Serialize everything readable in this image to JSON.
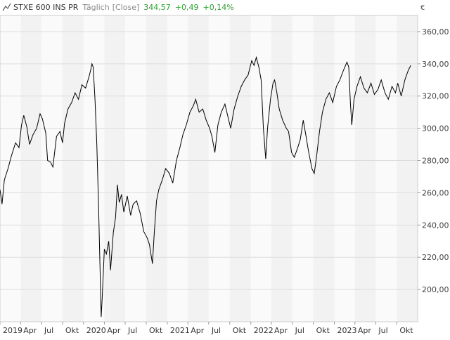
{
  "header": {
    "instrument": "STXE 600 INS PR",
    "interval": "Täglich",
    "price_type": "[Close]",
    "last": "344,57",
    "change": "+0,49",
    "change_pct": "+0,14%",
    "currency": "€"
  },
  "colors": {
    "positive": "#2e9e2e",
    "line": "#000000",
    "grid": "#dddddd",
    "band_alt": "#f2f2f2",
    "muted": "#888888"
  },
  "chart_data": {
    "type": "line",
    "ylim": [
      180,
      370
    ],
    "yticks": [
      200,
      220,
      240,
      260,
      280,
      300,
      320,
      340,
      360
    ],
    "ytick_labels": [
      "200,00",
      "220,00",
      "240,00",
      "260,00",
      "280,00",
      "300,00",
      "320,00",
      "340,00",
      "360,00"
    ],
    "xlim": [
      "2019-01-01",
      "2023-12-31"
    ],
    "xticks": [
      {
        "date": "2019-01-01",
        "label": "2019"
      },
      {
        "date": "2019-04-01",
        "label": "Apr"
      },
      {
        "date": "2019-07-01",
        "label": "Jul"
      },
      {
        "date": "2019-10-01",
        "label": "Okt"
      },
      {
        "date": "2020-01-01",
        "label": "2020"
      },
      {
        "date": "2020-04-01",
        "label": "Apr"
      },
      {
        "date": "2020-07-01",
        "label": "Jul"
      },
      {
        "date": "2020-10-01",
        "label": "Okt"
      },
      {
        "date": "2021-01-01",
        "label": "2021"
      },
      {
        "date": "2021-04-01",
        "label": "Apr"
      },
      {
        "date": "2021-07-01",
        "label": "Jul"
      },
      {
        "date": "2021-10-01",
        "label": "Okt"
      },
      {
        "date": "2022-01-01",
        "label": "2022"
      },
      {
        "date": "2022-04-01",
        "label": "Apr"
      },
      {
        "date": "2022-07-01",
        "label": "Jul"
      },
      {
        "date": "2022-10-01",
        "label": "Okt"
      },
      {
        "date": "2023-01-01",
        "label": "2023"
      },
      {
        "date": "2023-04-01",
        "label": "Apr"
      },
      {
        "date": "2023-07-01",
        "label": "Jul"
      },
      {
        "date": "2023-10-01",
        "label": "Okt"
      }
    ],
    "series": [
      {
        "values": [
          [
            "2019-01-01",
            262
          ],
          [
            "2019-01-10",
            253
          ],
          [
            "2019-01-20",
            268
          ],
          [
            "2019-02-05",
            275
          ],
          [
            "2019-02-20",
            283
          ],
          [
            "2019-03-10",
            291
          ],
          [
            "2019-03-25",
            288
          ],
          [
            "2019-04-05",
            302
          ],
          [
            "2019-04-15",
            308
          ],
          [
            "2019-04-28",
            301
          ],
          [
            "2019-05-10",
            290
          ],
          [
            "2019-05-25",
            296
          ],
          [
            "2019-06-10",
            300
          ],
          [
            "2019-06-25",
            309
          ],
          [
            "2019-07-05",
            306
          ],
          [
            "2019-07-20",
            297
          ],
          [
            "2019-07-28",
            280
          ],
          [
            "2019-08-10",
            279
          ],
          [
            "2019-08-20",
            276
          ],
          [
            "2019-09-05",
            295
          ],
          [
            "2019-09-20",
            298
          ],
          [
            "2019-10-01",
            291
          ],
          [
            "2019-10-10",
            303
          ],
          [
            "2019-10-25",
            312
          ],
          [
            "2019-11-10",
            316
          ],
          [
            "2019-11-25",
            322
          ],
          [
            "2019-12-10",
            318
          ],
          [
            "2019-12-25",
            327
          ],
          [
            "2020-01-10",
            325
          ],
          [
            "2020-01-25",
            332
          ],
          [
            "2020-02-01",
            336
          ],
          [
            "2020-02-07",
            340
          ],
          [
            "2020-02-12",
            338
          ],
          [
            "2020-02-20",
            318
          ],
          [
            "2020-02-28",
            290
          ],
          [
            "2020-03-06",
            255
          ],
          [
            "2020-03-12",
            220
          ],
          [
            "2020-03-18",
            183
          ],
          [
            "2020-03-23",
            196
          ],
          [
            "2020-04-01",
            225
          ],
          [
            "2020-04-10",
            222
          ],
          [
            "2020-04-20",
            230
          ],
          [
            "2020-04-28",
            212
          ],
          [
            "2020-05-10",
            235
          ],
          [
            "2020-05-20",
            245
          ],
          [
            "2020-05-28",
            265
          ],
          [
            "2020-06-05",
            254
          ],
          [
            "2020-06-15",
            259
          ],
          [
            "2020-06-25",
            248
          ],
          [
            "2020-07-10",
            258
          ],
          [
            "2020-07-25",
            246
          ],
          [
            "2020-08-05",
            253
          ],
          [
            "2020-08-20",
            255
          ],
          [
            "2020-09-05",
            247
          ],
          [
            "2020-09-20",
            236
          ],
          [
            "2020-10-05",
            232
          ],
          [
            "2020-10-15",
            228
          ],
          [
            "2020-10-28",
            216
          ],
          [
            "2020-11-05",
            235
          ],
          [
            "2020-11-15",
            255
          ],
          [
            "2020-11-25",
            262
          ],
          [
            "2020-12-10",
            268
          ],
          [
            "2020-12-25",
            275
          ],
          [
            "2021-01-10",
            272
          ],
          [
            "2021-01-25",
            266
          ],
          [
            "2021-02-10",
            280
          ],
          [
            "2021-02-25",
            288
          ],
          [
            "2021-03-10",
            296
          ],
          [
            "2021-03-25",
            302
          ],
          [
            "2021-04-10",
            310
          ],
          [
            "2021-04-25",
            314
          ],
          [
            "2021-05-05",
            318
          ],
          [
            "2021-05-20",
            310
          ],
          [
            "2021-06-05",
            312
          ],
          [
            "2021-06-20",
            305
          ],
          [
            "2021-07-05",
            300
          ],
          [
            "2021-07-15",
            295
          ],
          [
            "2021-07-28",
            285
          ],
          [
            "2021-08-10",
            302
          ],
          [
            "2021-08-25",
            310
          ],
          [
            "2021-09-10",
            315
          ],
          [
            "2021-09-25",
            306
          ],
          [
            "2021-10-05",
            300
          ],
          [
            "2021-10-20",
            312
          ],
          [
            "2021-11-05",
            320
          ],
          [
            "2021-11-20",
            326
          ],
          [
            "2021-12-05",
            330
          ],
          [
            "2021-12-20",
            333
          ],
          [
            "2022-01-05",
            342
          ],
          [
            "2022-01-15",
            339
          ],
          [
            "2022-01-25",
            344
          ],
          [
            "2022-02-05",
            338
          ],
          [
            "2022-02-15",
            330
          ],
          [
            "2022-02-25",
            300
          ],
          [
            "2022-03-07",
            281
          ],
          [
            "2022-03-15",
            300
          ],
          [
            "2022-03-28",
            318
          ],
          [
            "2022-04-08",
            328
          ],
          [
            "2022-04-15",
            330
          ],
          [
            "2022-04-25",
            322
          ],
          [
            "2022-05-05",
            312
          ],
          [
            "2022-05-20",
            305
          ],
          [
            "2022-06-05",
            300
          ],
          [
            "2022-06-15",
            298
          ],
          [
            "2022-06-28",
            285
          ],
          [
            "2022-07-10",
            282
          ],
          [
            "2022-07-25",
            288
          ],
          [
            "2022-08-05",
            293
          ],
          [
            "2022-08-18",
            305
          ],
          [
            "2022-08-28",
            297
          ],
          [
            "2022-09-10",
            286
          ],
          [
            "2022-09-25",
            275
          ],
          [
            "2022-10-05",
            272
          ],
          [
            "2022-10-15",
            282
          ],
          [
            "2022-10-28",
            298
          ],
          [
            "2022-11-10",
            310
          ],
          [
            "2022-11-25",
            318
          ],
          [
            "2022-12-10",
            322
          ],
          [
            "2022-12-25",
            316
          ],
          [
            "2023-01-10",
            326
          ],
          [
            "2023-01-25",
            330
          ],
          [
            "2023-02-10",
            336
          ],
          [
            "2023-02-25",
            341
          ],
          [
            "2023-03-05",
            338
          ],
          [
            "2023-03-12",
            316
          ],
          [
            "2023-03-18",
            302
          ],
          [
            "2023-03-28",
            318
          ],
          [
            "2023-04-10",
            326
          ],
          [
            "2023-04-25",
            332
          ],
          [
            "2023-05-10",
            325
          ],
          [
            "2023-05-25",
            322
          ],
          [
            "2023-06-10",
            328
          ],
          [
            "2023-06-25",
            321
          ],
          [
            "2023-07-10",
            324
          ],
          [
            "2023-07-25",
            330
          ],
          [
            "2023-08-10",
            322
          ],
          [
            "2023-08-25",
            318
          ],
          [
            "2023-09-10",
            326
          ],
          [
            "2023-09-25",
            322
          ],
          [
            "2023-10-05",
            328
          ],
          [
            "2023-10-20",
            320
          ],
          [
            "2023-11-05",
            330
          ],
          [
            "2023-11-20",
            336
          ],
          [
            "2023-12-01",
            339
          ]
        ]
      }
    ]
  }
}
